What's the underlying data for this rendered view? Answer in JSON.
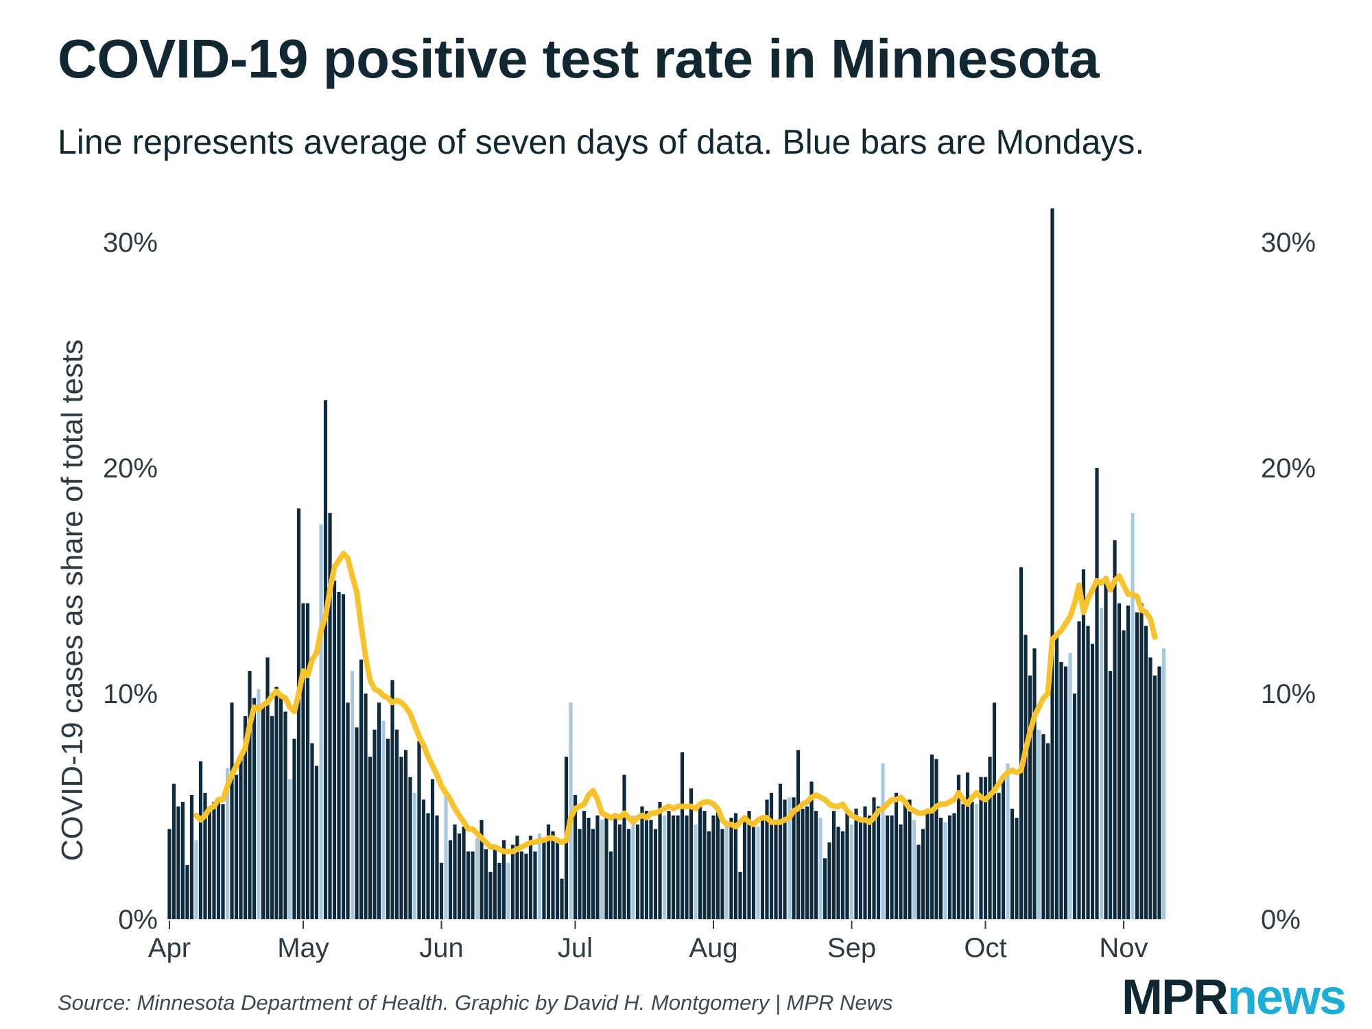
{
  "title": "COVID-19 positive test rate in Minnesota",
  "subtitle": "Line represents average of seven days of data. Blue bars are Mondays.",
  "source": "Source: Minnesota Department of Health. Graphic by David H. Montgomery | MPR News",
  "logo": {
    "part1": "MPR",
    "part2": "news"
  },
  "colors": {
    "bar": "#0f2a3d",
    "monday_bar": "#a7c8e0",
    "line": "#f7c22b",
    "text": "#112833"
  },
  "chart_data": {
    "type": "bar",
    "title": "COVID-19 positive test rate in Minnesota",
    "ylabel": "COVID-19 cases as share of total tests",
    "xlabel": "",
    "ylim": [
      0,
      31
    ],
    "y_ticks": [
      0,
      10,
      20,
      30
    ],
    "y_tick_labels": [
      "0%",
      "10%",
      "20%",
      "30%"
    ],
    "y_axis_both_sides": true,
    "x_tick_labels": [
      "Apr",
      "May",
      "Jun",
      "Jul",
      "Aug",
      "Sep",
      "Oct",
      "Nov"
    ],
    "x_tick_days": [
      1,
      31,
      62,
      92,
      123,
      154,
      184,
      215
    ],
    "first_day": 1,
    "first_monday": 7,
    "series": [
      {
        "kind": "bar",
        "values": [
          4.0,
          6.0,
          5.0,
          5.2,
          2.4,
          5.5,
          3.5,
          7.0,
          5.6,
          4.8,
          5.2,
          5.4,
          5.1,
          6.7,
          9.6,
          6.4,
          7.2,
          9.0,
          11.0,
          9.8,
          10.2,
          9.5,
          11.6,
          9.0,
          10.3,
          10.0,
          9.2,
          6.2,
          8.0,
          18.2,
          14.0,
          14.0,
          7.8,
          6.8,
          17.5,
          23.0,
          18.0,
          15.0,
          14.5,
          14.4,
          9.6,
          11.0,
          8.5,
          11.5,
          10.0,
          7.2,
          8.4,
          9.6,
          8.8,
          8.0,
          10.6,
          8.4,
          7.2,
          7.5,
          6.3,
          5.6,
          7.9,
          5.3,
          4.7,
          6.2,
          4.6,
          2.5,
          5.7,
          3.5,
          4.2,
          3.8,
          4.1,
          3.0,
          3.0,
          3.6,
          4.4,
          3.1,
          2.1,
          3.2,
          2.5,
          3.5,
          2.5,
          3.3,
          3.7,
          3.0,
          2.9,
          3.7,
          3.0,
          3.8,
          3.5,
          4.2,
          3.9,
          3.4,
          1.8,
          7.2,
          9.6,
          5.5,
          4.0,
          4.8,
          4.5,
          4.0,
          4.6,
          4.4,
          4.7,
          3.0,
          4.5,
          4.2,
          6.4,
          4.0,
          4.6,
          4.2,
          5.0,
          4.8,
          4.4,
          4.0,
          5.2,
          4.6,
          4.8,
          4.6,
          4.6,
          7.4,
          4.6,
          5.8,
          4.2,
          5.2,
          4.8,
          3.9,
          4.6,
          4.9,
          4.0,
          4.3,
          4.5,
          4.7,
          2.1,
          4.5,
          4.8,
          4.3,
          4.1,
          4.6,
          5.3,
          5.6,
          4.4,
          6.0,
          5.3,
          5.4,
          5.4,
          7.5,
          4.9,
          5.0,
          6.1,
          4.8,
          4.5,
          2.7,
          3.4,
          4.8,
          4.1,
          3.9,
          4.8,
          4.2,
          4.9,
          4.4,
          5.0,
          4.6,
          5.4,
          5.0,
          6.9,
          4.6,
          4.6,
          5.6,
          4.2,
          5.2,
          5.3,
          4.4,
          3.3,
          4.0,
          4.9,
          7.3,
          7.1,
          4.5,
          4.3,
          4.6,
          4.7,
          6.4,
          5.1,
          6.5,
          5.2,
          5.1,
          6.3,
          6.3,
          7.2,
          9.6,
          5.6,
          6.2,
          6.9,
          4.9,
          4.5,
          15.6,
          12.6,
          10.8,
          12.0,
          8.4,
          8.2,
          7.8,
          31.5,
          12.6,
          11.4,
          11.2,
          11.8,
          10.0,
          13.2,
          15.5,
          13.0,
          12.2,
          20.0,
          13.8,
          15.0,
          11.0,
          16.8,
          14.0,
          12.8,
          13.9,
          18.0,
          13.6,
          14.0,
          13.0,
          11.6,
          10.8,
          11.2,
          12.0
        ]
      },
      {
        "kind": "line",
        "start_day": 7,
        "values": [
          4.6,
          4.4,
          4.6,
          4.9,
          5.0,
          5.3,
          5.3,
          5.9,
          6.4,
          6.8,
          7.2,
          7.6,
          8.6,
          9.4,
          9.3,
          9.5,
          9.6,
          9.9,
          10.1,
          9.9,
          9.8,
          9.4,
          9.2,
          10.0,
          11.0,
          10.8,
          11.5,
          11.8,
          12.8,
          13.4,
          14.6,
          15.6,
          15.9,
          16.2,
          16.0,
          15.2,
          14.5,
          13.0,
          11.6,
          10.6,
          10.2,
          10.1,
          9.9,
          9.8,
          9.6,
          9.7,
          9.6,
          9.4,
          9.1,
          8.6,
          8.1,
          7.7,
          7.2,
          6.8,
          6.4,
          5.9,
          5.6,
          5.3,
          4.9,
          4.6,
          4.3,
          4.0,
          4.0,
          3.8,
          3.6,
          3.4,
          3.2,
          3.2,
          3.1,
          3.0,
          3.0,
          3.0,
          3.1,
          3.2,
          3.3,
          3.4,
          3.4,
          3.5,
          3.5,
          3.6,
          3.6,
          3.5,
          3.4,
          3.5,
          4.5,
          4.9,
          5.0,
          5.1,
          5.5,
          5.7,
          5.3,
          4.7,
          4.6,
          4.5,
          4.6,
          4.5,
          4.7,
          4.5,
          4.3,
          4.5,
          4.6,
          4.5,
          4.7,
          4.7,
          4.8,
          4.9,
          5.0,
          4.9,
          5.0,
          5.0,
          5.0,
          5.0,
          4.9,
          5.1,
          5.2,
          5.2,
          5.1,
          4.9,
          4.4,
          4.2,
          4.2,
          4.1,
          4.3,
          4.5,
          4.3,
          4.2,
          4.4,
          4.5,
          4.5,
          4.3,
          4.3,
          4.3,
          4.4,
          4.5,
          4.8,
          4.9,
          5.1,
          5.2,
          5.4,
          5.5,
          5.4,
          5.3,
          5.1,
          5.0,
          5.0,
          5.1,
          4.8,
          4.6,
          4.5,
          4.4,
          4.4,
          4.3,
          4.5,
          4.8,
          4.9,
          5.1,
          5.3,
          5.3,
          5.4,
          5.2,
          4.9,
          4.8,
          4.7,
          4.7,
          4.8,
          4.8,
          5.0,
          5.1,
          5.1,
          5.2,
          5.3,
          5.6,
          5.3,
          5.1,
          5.4,
          5.6,
          5.4,
          5.3,
          5.5,
          5.7,
          6.0,
          6.3,
          6.5,
          6.6,
          6.5,
          6.6,
          7.5,
          8.3,
          9.0,
          9.4,
          9.8,
          10.0,
          12.4,
          12.6,
          12.8,
          13.1,
          13.4,
          14.0,
          14.8,
          13.6,
          14.2,
          14.6,
          15.0,
          14.9,
          15.1,
          14.6,
          15.0,
          15.2,
          14.8,
          14.4,
          14.4,
          14.3,
          13.7,
          13.6,
          13.3,
          12.5
        ]
      }
    ]
  }
}
